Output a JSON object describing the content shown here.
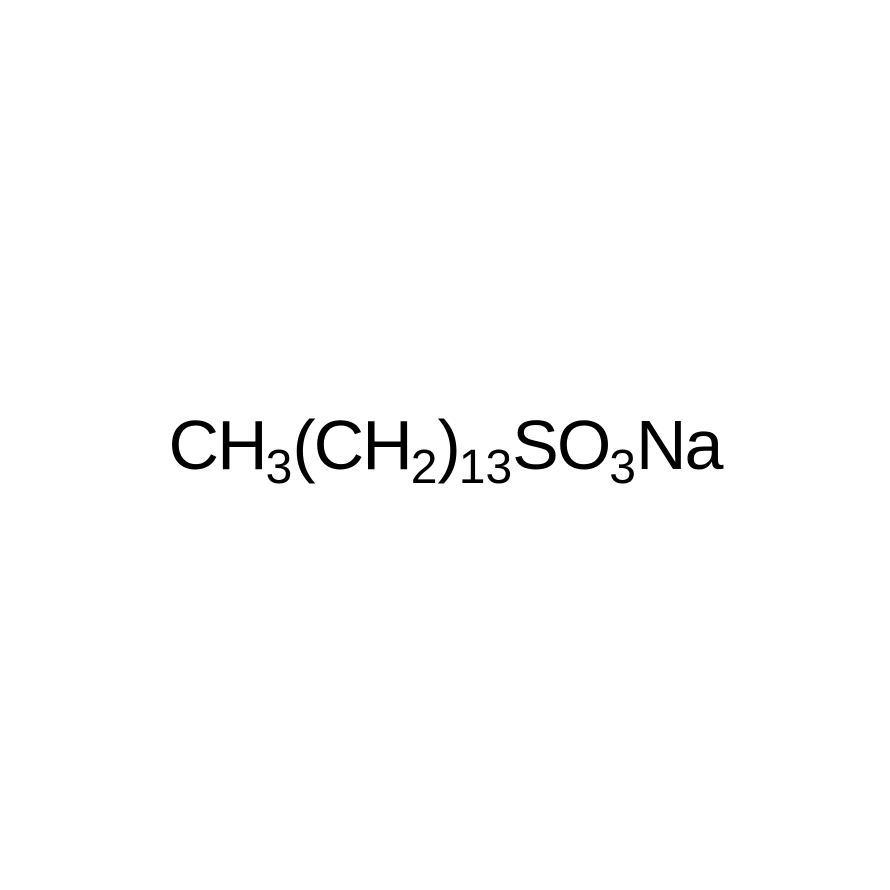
{
  "formula": {
    "type": "chemical-formula",
    "parts": [
      {
        "text": "CH",
        "style": "main"
      },
      {
        "text": "3",
        "style": "sub"
      },
      {
        "text": "(CH",
        "style": "main"
      },
      {
        "text": "2",
        "style": "sub"
      },
      {
        "text": ")",
        "style": "main"
      },
      {
        "text": "13",
        "style": "sub"
      },
      {
        "text": "SO",
        "style": "main"
      },
      {
        "text": "3",
        "style": "sub"
      },
      {
        "text": "Na",
        "style": "main"
      }
    ],
    "main_fontsize": 70,
    "sub_fontsize": 48,
    "text_color": "#000000",
    "background_color": "#ffffff",
    "font_family": "Arial"
  }
}
